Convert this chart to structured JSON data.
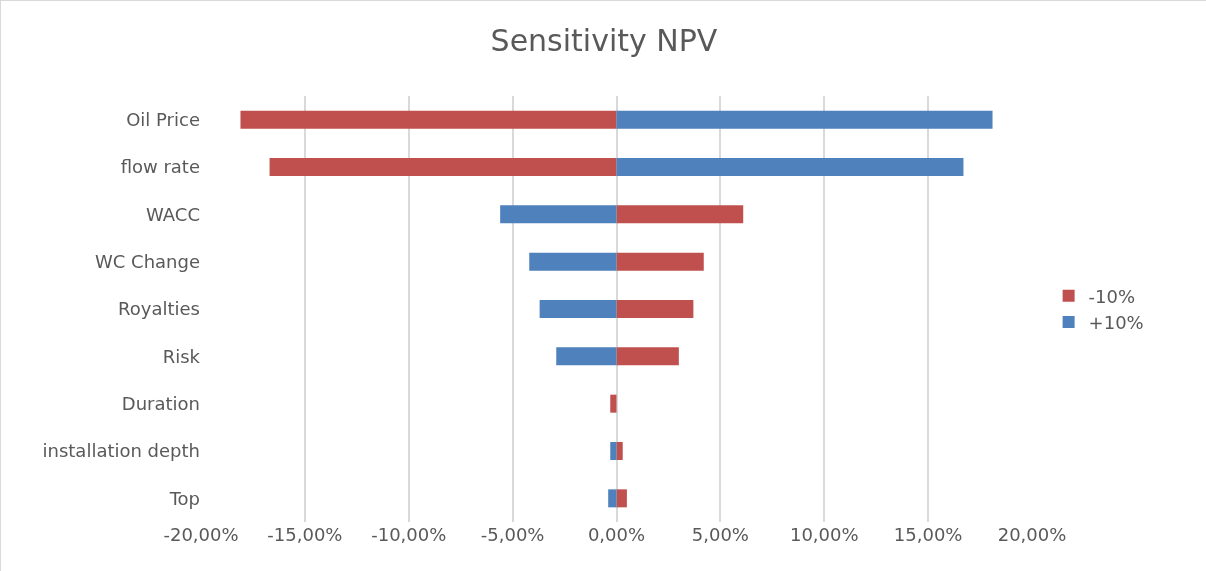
{
  "chart_data": {
    "type": "bar",
    "orientation": "horizontal",
    "title": "Sensitivity NPV",
    "categories": [
      "Oil Price",
      "flow rate",
      "WACC",
      "WC Change",
      "Royalties",
      "Risk",
      "Duration",
      "installation depth",
      "Top"
    ],
    "series": [
      {
        "name": "-10%",
        "color": "#c0504d",
        "values": [
          -18.1,
          -16.7,
          6.1,
          4.2,
          3.7,
          3.0,
          -0.3,
          0.3,
          0.5
        ]
      },
      {
        "name": "+10%",
        "color": "#4f81bd",
        "values": [
          18.1,
          16.7,
          -5.6,
          -4.2,
          -3.7,
          -2.9,
          null,
          -0.3,
          -0.4
        ]
      }
    ],
    "xlim": [
      -20,
      20
    ],
    "xticks": [
      {
        "value": -20,
        "label": "-20,00%"
      },
      {
        "value": -15,
        "label": "-15,00%"
      },
      {
        "value": -10,
        "label": "-10,00%"
      },
      {
        "value": -5,
        "label": "-5,00%"
      },
      {
        "value": 0,
        "label": "0,00%"
      },
      {
        "value": 5,
        "label": "5,00%"
      },
      {
        "value": 10,
        "label": "10,00%"
      },
      {
        "value": 15,
        "label": "15,00%"
      },
      {
        "value": 20,
        "label": "20,00%"
      }
    ],
    "grid": "x",
    "legend": "right",
    "stacked": true
  }
}
